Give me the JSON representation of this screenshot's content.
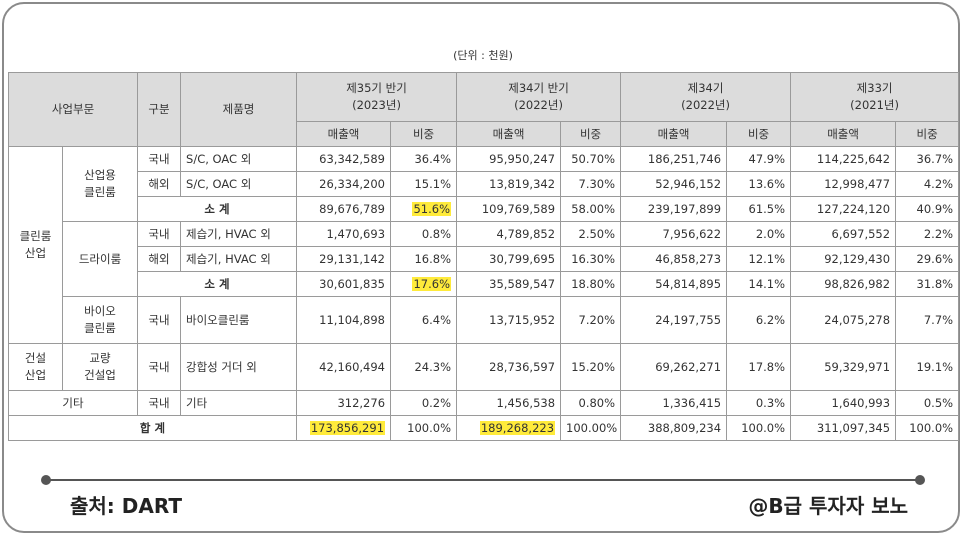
{
  "table": {
    "unit": "(단위 : 천원)",
    "head": {
      "segment": "사업부문",
      "division": "구분",
      "product": "제품명",
      "periods": [
        {
          "name": "제35기 반기",
          "year": "(2023년)"
        },
        {
          "name": "제34기 반기",
          "year": "(2022년)"
        },
        {
          "name": "제34기",
          "year": "(2022년)"
        },
        {
          "name": "제33기",
          "year": "(2021년)"
        }
      ],
      "subheads": [
        "매출액",
        "비중",
        "매출액",
        "비중",
        "매출액",
        "비중",
        "매출액",
        "비중"
      ]
    },
    "rows": [
      [
        "클린룸\n산업",
        "산업용\n클린룸",
        "국내",
        "S/C, OAC 외",
        "63,342,589",
        "36.4%",
        "95,950,247",
        "50.70%",
        "186,251,746",
        "47.9%",
        "114,225,642",
        "36.7%"
      ],
      [
        "해외",
        "S/C, OAC 외",
        "26,334,200",
        "15.1%",
        "13,819,342",
        "7.30%",
        "52,946,152",
        "13.6%",
        "12,998,477",
        "4.2%"
      ],
      [
        "소 계",
        "89,676,789",
        "51.6%",
        "109,769,589",
        "58.00%",
        "239,197,899",
        "61.5%",
        "127,224,120",
        "40.9%"
      ],
      [
        "드라이룸",
        "국내",
        "제습기, HVAC 외",
        "1,470,693",
        "0.8%",
        "4,789,852",
        "2.50%",
        "7,956,622",
        "2.0%",
        "6,697,552",
        "2.2%"
      ],
      [
        "해외",
        "제습기, HVAC 외",
        "29,131,142",
        "16.8%",
        "30,799,695",
        "16.30%",
        "46,858,273",
        "12.1%",
        "92,129,430",
        "29.6%"
      ],
      [
        "소 계",
        "30,601,835",
        "17.6%",
        "35,589,547",
        "18.80%",
        "54,814,895",
        "14.1%",
        "98,826,982",
        "31.8%"
      ],
      [
        "바이오\n클린룸",
        "국내",
        "바이오클린룸",
        "11,104,898",
        "6.4%",
        "13,715,952",
        "7.20%",
        "24,197,755",
        "6.2%",
        "24,075,278",
        "7.7%"
      ],
      [
        "건설\n산업",
        "교량\n건설업",
        "국내",
        "강합성 거더 외",
        "42,160,494",
        "24.3%",
        "28,736,597",
        "15.20%",
        "69,262,271",
        "17.8%",
        "59,329,971",
        "19.1%"
      ],
      [
        "기타",
        "국내",
        "기타",
        "312,276",
        "0.2%",
        "1,456,538",
        "0.80%",
        "1,336,415",
        "0.3%",
        "1,640,993",
        "0.5%"
      ],
      [
        "합 계",
        "173,856,291",
        "100.0%",
        "189,268,223",
        "100.00%",
        "388,809,234",
        "100.0%",
        "311,097,345",
        "100.0%"
      ]
    ]
  },
  "footer": {
    "source": "출처: DART",
    "author": "@B급 투자자 보노"
  }
}
